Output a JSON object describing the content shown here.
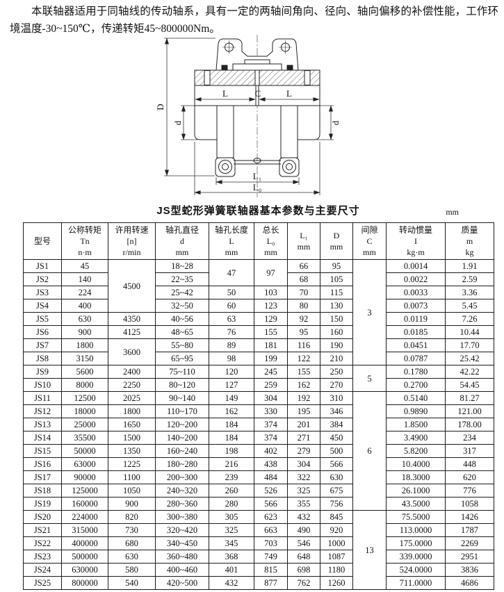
{
  "intro": "本联轴器适用于同轴线的传动轴系，具有一定的两轴间角向、径向、轴向偏移的补偿性能，工作环境温度-30~150℃，传递转矩45~800000Nm。",
  "diagram": {
    "labels": {
      "D": "D",
      "d": "d",
      "L": "L",
      "C": "C",
      "L1": "L₁",
      "L0": "L₀"
    }
  },
  "table": {
    "title": "JS型蛇形弹簧联轴器基本参数与主要尺寸",
    "unit": "mm",
    "columns": [
      {
        "lines": [
          "型号"
        ]
      },
      {
        "lines": [
          "公称转矩",
          "Tn",
          "n·m"
        ]
      },
      {
        "lines": [
          "许用转速",
          "[n]",
          "r/min"
        ]
      },
      {
        "lines": [
          "轴孔直径",
          "d",
          "mm"
        ]
      },
      {
        "lines": [
          "轴孔长度",
          "L",
          "mm"
        ]
      },
      {
        "lines": [
          "总长",
          "L₀",
          "mm"
        ]
      },
      {
        "lines": [
          "L₁",
          "mm"
        ]
      },
      {
        "lines": [
          "D",
          "mm"
        ]
      },
      {
        "lines": [
          "间隙",
          "C",
          "mm"
        ]
      },
      {
        "lines": [
          "转动惯量",
          "I",
          "kg·m"
        ]
      },
      {
        "lines": [
          "质量",
          "m",
          "kg"
        ]
      }
    ],
    "rows": [
      [
        "JS1",
        "45",
        {
          "t": "4500",
          "r": 4
        },
        "18~28",
        {
          "t": "47",
          "r": 2
        },
        {
          "t": "97",
          "r": 2
        },
        "66",
        "95",
        {
          "t": "3",
          "r": 8
        },
        "0.0014",
        "1.91"
      ],
      [
        "JS2",
        "140",
        "22~35",
        "68",
        "105",
        "0.0022",
        "2.59"
      ],
      [
        "JS3",
        "224",
        "25~42",
        "50",
        "103",
        "70",
        "115",
        "0.0033",
        "3.36"
      ],
      [
        "JS4",
        "400",
        "32~50",
        "60",
        "123",
        "80",
        "130",
        "0.0073",
        "5.45"
      ],
      [
        "JS5",
        "630",
        "4350",
        "40~56",
        "63",
        "129",
        "92",
        "150",
        "0.0119",
        "7.26"
      ],
      [
        "JS6",
        "900",
        "4125",
        "48~65",
        "76",
        "155",
        "95",
        "160",
        "0.0185",
        "10.44"
      ],
      [
        "JS7",
        "1800",
        {
          "t": "3600",
          "r": 2
        },
        "55~80",
        "89",
        "181",
        "116",
        "190",
        "0.0451",
        "17.70"
      ],
      [
        "JS8",
        "3150",
        "65~95",
        "98",
        "199",
        "122",
        "210",
        "0.0787",
        "25.42"
      ],
      [
        "JS9",
        "5600",
        "2400",
        "75~110",
        "120",
        "245",
        "155",
        "250",
        {
          "t": "5",
          "r": 2
        },
        "0.1780",
        "42.22"
      ],
      [
        "JS10",
        "8000",
        "2250",
        "80~120",
        "127",
        "259",
        "162",
        "270",
        "0.2700",
        "54.45"
      ],
      [
        "JS11",
        "12500",
        "2025",
        "90~140",
        "149",
        "304",
        "192",
        "310",
        {
          "t": "6",
          "r": 9
        },
        "0.5140",
        "81.27"
      ],
      [
        "JS12",
        "18000",
        "1800",
        "110~170",
        "162",
        "330",
        "195",
        "346",
        "0.9890",
        "121.00"
      ],
      [
        "JS13",
        "25000",
        "1650",
        "120~200",
        "184",
        "374",
        "201",
        "384",
        "1.8500",
        "178.00"
      ],
      [
        "JS14",
        "35500",
        "1500",
        "140~200",
        "184",
        "374",
        "271",
        "450",
        "3.4900",
        "234"
      ],
      [
        "JS15",
        "50000",
        "1350",
        "160~240",
        "198",
        "402",
        "279",
        "500",
        "5.8200",
        "317"
      ],
      [
        "JS16",
        "63000",
        "1225",
        "180~280",
        "216",
        "438",
        "304",
        "566",
        "10.4000",
        "448"
      ],
      [
        "JS17",
        "90000",
        "1100",
        "200~300",
        "239",
        "484",
        "322",
        "630",
        "18.3000",
        "620"
      ],
      [
        "JS18",
        "125000",
        "1050",
        "240~320",
        "260",
        "526",
        "325",
        "675",
        "26.1000",
        "776"
      ],
      [
        "JS19",
        "160000",
        "900",
        "280~360",
        "280",
        "566",
        "355",
        "756",
        "43.5000",
        "1058"
      ],
      [
        "JS20",
        "224000",
        "820",
        "300~380",
        "305",
        "623",
        "432",
        "845",
        {
          "t": "13",
          "r": 6
        },
        "75.5000",
        "1426"
      ],
      [
        "JS21",
        "315000",
        "730",
        "320~420",
        "325",
        "663",
        "490",
        "920",
        "113.0000",
        "1787"
      ],
      [
        "JS22",
        "400000",
        "680",
        "340~450",
        "345",
        "703",
        "546",
        "1000",
        "175.0000",
        "2269"
      ],
      [
        "JS23",
        "500000",
        "630",
        "360~480",
        "368",
        "749",
        "648",
        "1087",
        "339.0000",
        "2951"
      ],
      [
        "JS24",
        "630000",
        "580",
        "400~460",
        "401",
        "815",
        "698",
        "1180",
        "524.0000",
        "3836"
      ],
      [
        "JS25",
        "800000",
        "540",
        "420~500",
        "432",
        "877",
        "762",
        "1260",
        "711.0000",
        "4686"
      ]
    ]
  }
}
